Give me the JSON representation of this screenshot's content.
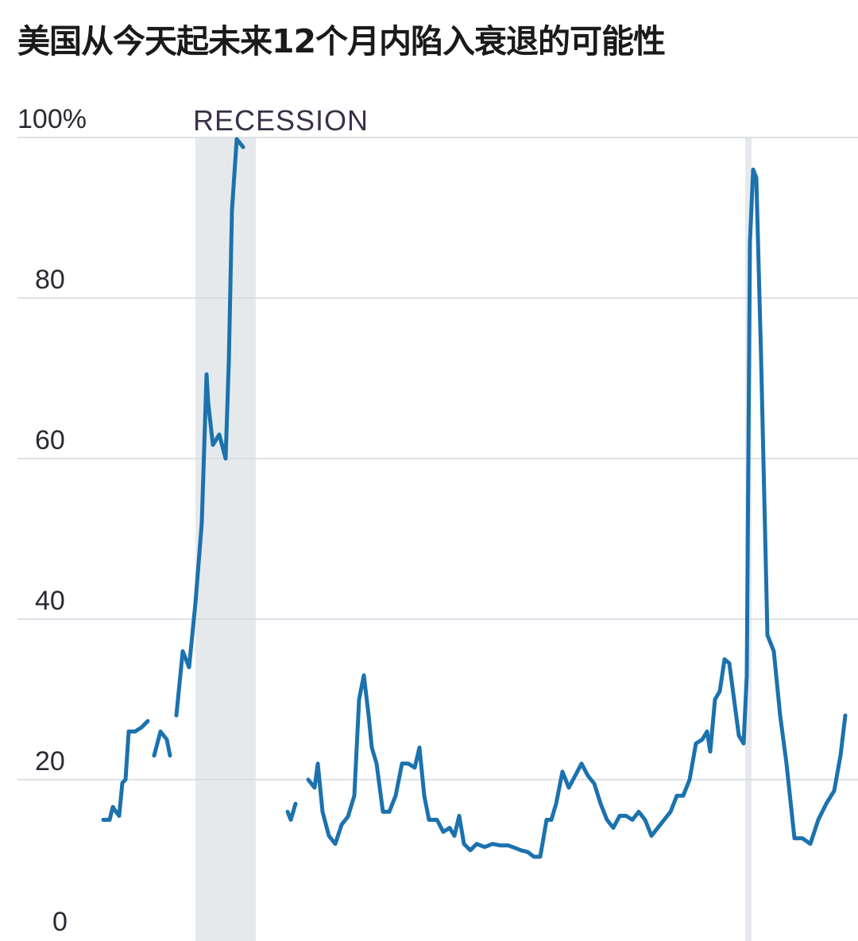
{
  "chart_data": {
    "type": "line",
    "title": "美国从今天起未来12个月内陷入衰退的可能性",
    "xlabel": "",
    "ylabel": "",
    "ylim": [
      0,
      100
    ],
    "xlim": [
      0,
      529
    ],
    "y_ticks": [
      "0",
      "20",
      "40",
      "60",
      "80",
      "100%"
    ],
    "y_tick_values": [
      0,
      20,
      40,
      60,
      80,
      100
    ],
    "grid": "horizontal",
    "line_color": "#1b72ae",
    "recession_color": "#e6e9ec",
    "recession_label": "RECESSION",
    "recessions": [
      [
        112,
        150
      ],
      [
        458,
        462
      ]
    ],
    "segments": [
      [
        [
          54,
          15
        ],
        [
          58,
          15
        ],
        [
          60,
          16.6
        ],
        [
          62,
          16
        ],
        [
          64,
          15.5
        ],
        [
          66,
          19.6
        ],
        [
          68,
          20
        ],
        [
          70,
          26
        ],
        [
          74,
          26
        ],
        [
          78,
          26.5
        ],
        [
          82,
          27.3
        ]
      ],
      [
        [
          86,
          23
        ],
        [
          90,
          26
        ],
        [
          94,
          25
        ],
        [
          96,
          23
        ]
      ],
      [
        [
          100,
          28
        ],
        [
          104,
          36
        ],
        [
          108,
          34
        ],
        [
          112,
          42
        ],
        [
          116,
          52
        ],
        [
          119,
          70.5
        ],
        [
          120,
          67
        ],
        [
          123,
          61.7
        ],
        [
          127,
          63
        ],
        [
          131,
          60
        ],
        [
          133,
          72
        ],
        [
          135,
          91
        ],
        [
          138,
          99.8
        ],
        [
          142,
          98.8
        ]
      ],
      [
        [
          170,
          16
        ],
        [
          172,
          15
        ],
        [
          175,
          17
        ]
      ],
      [
        [
          183,
          20
        ],
        [
          187,
          19
        ],
        [
          189,
          22
        ],
        [
          192,
          16
        ],
        [
          196,
          13
        ],
        [
          200,
          12
        ],
        [
          204,
          14.4
        ],
        [
          208,
          15.4
        ],
        [
          212,
          18
        ],
        [
          215,
          30
        ],
        [
          218,
          33
        ],
        [
          221,
          28
        ],
        [
          223,
          24
        ],
        [
          226,
          22
        ],
        [
          230,
          16
        ],
        [
          234,
          16
        ],
        [
          238,
          18
        ],
        [
          242,
          22
        ],
        [
          246,
          22
        ],
        [
          250,
          21.5
        ],
        [
          253,
          24
        ],
        [
          256,
          18
        ],
        [
          259,
          15
        ],
        [
          264,
          15
        ],
        [
          268,
          13.5
        ],
        [
          272,
          14
        ],
        [
          275,
          13
        ],
        [
          278,
          15.5
        ],
        [
          281,
          12
        ],
        [
          285,
          11.2
        ],
        [
          289,
          12
        ],
        [
          294,
          11.6
        ],
        [
          299,
          12
        ],
        [
          304,
          11.8
        ],
        [
          309,
          11.8
        ],
        [
          313,
          11.5
        ],
        [
          317,
          11.2
        ],
        [
          321,
          11
        ],
        [
          325,
          10.4
        ],
        [
          329,
          10.4
        ],
        [
          333,
          15
        ],
        [
          336,
          15
        ],
        [
          339,
          17
        ],
        [
          343,
          21
        ],
        [
          347,
          19
        ],
        [
          351,
          20.5
        ],
        [
          355,
          22
        ],
        [
          359,
          20.5
        ],
        [
          363,
          19.5
        ],
        [
          367,
          17
        ],
        [
          371,
          15
        ],
        [
          375,
          14
        ],
        [
          379,
          15.5
        ],
        [
          383,
          15.5
        ],
        [
          387,
          15
        ],
        [
          391,
          16
        ],
        [
          395,
          15
        ],
        [
          399,
          13
        ],
        [
          403,
          14
        ],
        [
          407,
          15
        ],
        [
          411,
          16
        ],
        [
          415,
          18
        ],
        [
          419,
          18
        ],
        [
          423,
          20
        ],
        [
          427,
          24.5
        ],
        [
          431,
          25
        ],
        [
          434,
          26
        ],
        [
          436,
          23.5
        ],
        [
          439,
          30
        ],
        [
          442,
          31
        ],
        [
          445,
          35
        ],
        [
          448,
          34.5
        ],
        [
          451,
          30
        ],
        [
          454,
          25.5
        ],
        [
          457,
          24.5
        ],
        [
          459,
          33
        ],
        [
          461,
          87
        ],
        [
          463,
          96
        ],
        [
          465,
          95
        ],
        [
          468,
          72.6
        ],
        [
          472,
          38
        ],
        [
          476,
          36
        ],
        [
          480,
          28
        ],
        [
          484,
          22
        ],
        [
          489,
          12.7
        ],
        [
          494,
          12.7
        ],
        [
          499,
          12
        ],
        [
          504,
          15
        ],
        [
          509,
          17
        ],
        [
          514,
          18.6
        ],
        [
          518,
          23
        ],
        [
          521,
          28
        ]
      ]
    ]
  }
}
